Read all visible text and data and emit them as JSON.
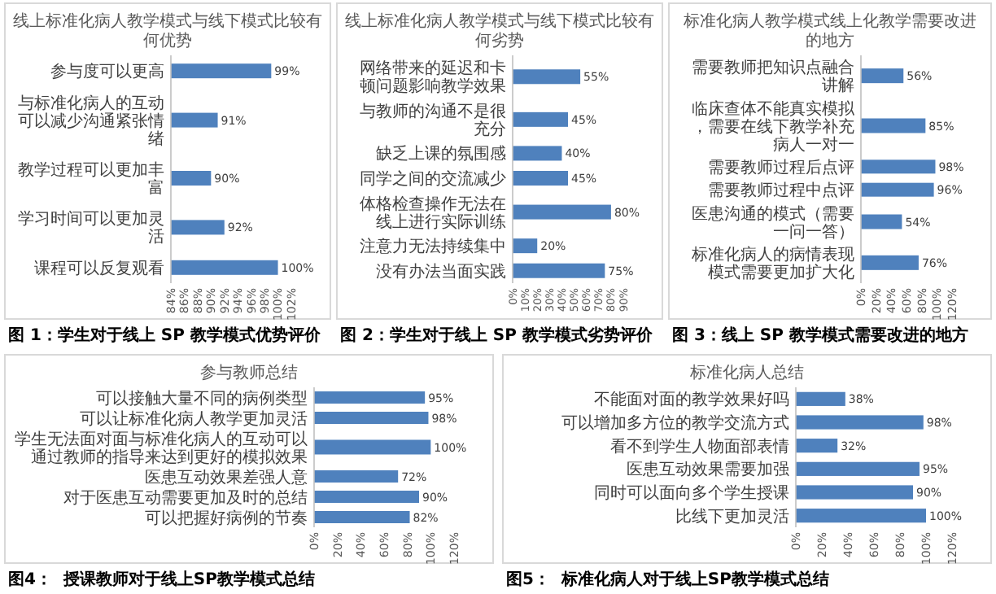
{
  "chart_data": [
    {
      "type": "bar",
      "orientation": "horizontal",
      "title": "线上标准化病人教学模式与线下模式比较有何优势",
      "categories": [
        "参与度可以更高",
        "与标准化病人的互动可以减少沟通紧张情绪",
        "教学过程可以更加丰富",
        "学习时间可以更加灵活",
        "课程可以反复观看"
      ],
      "values": [
        99,
        91,
        90,
        92,
        100
      ],
      "value_labels": [
        "99%",
        "91%",
        "90%",
        "92%",
        "100%"
      ],
      "color": "#4f81bd",
      "xlim": [
        84,
        102
      ],
      "xticks": [
        {
          "value": 84,
          "label": "84%"
        },
        {
          "value": 86,
          "label": "86%"
        },
        {
          "value": 88,
          "label": "88%"
        },
        {
          "value": 90,
          "label": "90%"
        },
        {
          "value": 92,
          "label": "92%"
        },
        {
          "value": 94,
          "label": "94%"
        },
        {
          "value": 96,
          "label": "96%"
        },
        {
          "value": 98,
          "label": "98%"
        },
        {
          "value": 100,
          "label": "100%"
        },
        {
          "value": 102,
          "label": "102%"
        }
      ],
      "annotations": [
        "图 1：学生对于线上 SP 教学模式优势评价"
      ]
    },
    {
      "type": "bar",
      "orientation": "horizontal",
      "title": "线上标准化病人教学模式与线下模式比较有何劣势",
      "categories": [
        "网络带来的延迟和卡顿问题影响教学效果",
        "与教师的沟通不是很充分",
        "缺乏上课的氛围感",
        "同学之间的交流减少",
        "体格检查操作无法在线上进行实际训练",
        "注意力无法持续集中",
        "没有办法当面实践"
      ],
      "values": [
        55,
        45,
        40,
        45,
        80,
        20,
        75
      ],
      "value_labels": [
        "55%",
        "45%",
        "40%",
        "45%",
        "80%",
        "20%",
        "75%"
      ],
      "color": "#4f81bd",
      "xlim": [
        0,
        90
      ],
      "xticks": [
        {
          "value": 0,
          "label": "0%"
        },
        {
          "value": 10,
          "label": "10%"
        },
        {
          "value": 20,
          "label": "20%"
        },
        {
          "value": 30,
          "label": "30%"
        },
        {
          "value": 40,
          "label": "40%"
        },
        {
          "value": 50,
          "label": "50%"
        },
        {
          "value": 60,
          "label": "60%"
        },
        {
          "value": 70,
          "label": "70%"
        },
        {
          "value": 80,
          "label": "80%"
        },
        {
          "value": 90,
          "label": "90%"
        }
      ],
      "annotations": [
        "图 2：学生对于线上 SP 教学模式劣势评价"
      ]
    },
    {
      "type": "bar",
      "orientation": "horizontal",
      "title": "标准化病人教学模式线上化教学需要改进的地方",
      "categories": [
        "需要教师把知识点融合讲解",
        "临床查体不能真实模拟，需要在线下教学补充病人一对一",
        "需要教师过程后点评",
        "需要教师过程中点评",
        "医患沟通的模式（需要一问一答）",
        "标准化病人的病情表现模式需要更加扩大化"
      ],
      "values": [
        56,
        85,
        98,
        96,
        54,
        76
      ],
      "value_labels": [
        "56%",
        "85%",
        "98%",
        "96%",
        "54%",
        "76%"
      ],
      "color": "#4f81bd",
      "xlim": [
        0,
        120
      ],
      "xticks": [
        {
          "value": 0,
          "label": "0%"
        },
        {
          "value": 20,
          "label": "20%"
        },
        {
          "value": 40,
          "label": "40%"
        },
        {
          "value": 60,
          "label": "60%"
        },
        {
          "value": 80,
          "label": "80%"
        },
        {
          "value": 100,
          "label": "100%"
        },
        {
          "value": 120,
          "label": "120%"
        }
      ],
      "annotations": [
        "图 3：线上 SP 教学模式需要改进的地方"
      ]
    },
    {
      "type": "bar",
      "orientation": "horizontal",
      "title": "参与教师总结",
      "categories": [
        "可以接触大量不同的病例类型",
        "可以让标准化病人教学更加灵活",
        "学生无法面对面与标准化病人的互动可以通过教师的指导来达到更好的模拟效果",
        "医患互动效果差强人意",
        "对于医患互动需要更加及时的总结",
        "可以把握好病例的节奏"
      ],
      "values": [
        95,
        98,
        100,
        72,
        90,
        82
      ],
      "value_labels": [
        "95%",
        "98%",
        "100%",
        "72%",
        "90%",
        "82%"
      ],
      "color": "#4f81bd",
      "xlim": [
        0,
        120
      ],
      "xticks": [
        {
          "value": 0,
          "label": "0%"
        },
        {
          "value": 20,
          "label": "20%"
        },
        {
          "value": 40,
          "label": "40%"
        },
        {
          "value": 60,
          "label": "60%"
        },
        {
          "value": 80,
          "label": "80%"
        },
        {
          "value": 100,
          "label": "100%"
        },
        {
          "value": 120,
          "label": "120%"
        }
      ],
      "annotations": [
        "图4：  授课教师对于线上SP教学模式总结"
      ]
    },
    {
      "type": "bar",
      "orientation": "horizontal",
      "title": "标准化病人总结",
      "categories": [
        "不能面对面的教学效果好吗",
        "可以增加多方位的教学交流方式",
        "看不到学生人物面部表情",
        "医患互动效果需要加强",
        "同时可以面向多个学生授课",
        "比线下更加灵活"
      ],
      "values": [
        38,
        98,
        32,
        95,
        90,
        100
      ],
      "value_labels": [
        "38%",
        "98%",
        "32%",
        "95%",
        "90%",
        "100%"
      ],
      "color": "#4f81bd",
      "xlim": [
        0,
        120
      ],
      "xticks": [
        {
          "value": 0,
          "label": "0%"
        },
        {
          "value": 20,
          "label": "20%"
        },
        {
          "value": 40,
          "label": "40%"
        },
        {
          "value": 60,
          "label": "60%"
        },
        {
          "value": 80,
          "label": "80%"
        },
        {
          "value": 100,
          "label": "100%"
        },
        {
          "value": 120,
          "label": "120%"
        }
      ],
      "annotations": [
        "图5：  标准化病人对于线上SP教学模式总结"
      ]
    }
  ]
}
